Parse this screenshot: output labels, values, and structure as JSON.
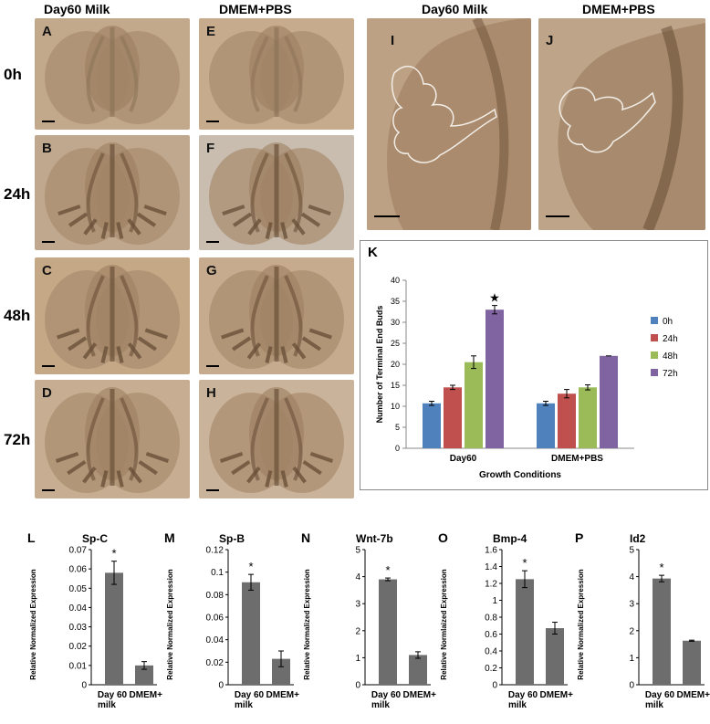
{
  "photo_panels": {
    "col_left_title": "Day60 Milk",
    "col_mid_title": "DMEM+PBS",
    "col_i_title": "Day60 Milk",
    "col_j_title": "DMEM+PBS",
    "rows": [
      "0h",
      "24h",
      "48h",
      "72h"
    ],
    "letters_left": [
      "A",
      "B",
      "C",
      "D"
    ],
    "letters_mid": [
      "E",
      "F",
      "G",
      "H"
    ],
    "letter_i": "I",
    "letter_j": "J"
  },
  "chart_data": [
    {
      "panel": "K",
      "type": "bar",
      "categories": [
        "Day60",
        "DMEM+PBS"
      ],
      "series": [
        {
          "name": "0h",
          "values": [
            10.7,
            10.7
          ],
          "errors": [
            0.5,
            0.5
          ],
          "color": "#4f81bd"
        },
        {
          "name": "24h",
          "values": [
            14.5,
            13.0
          ],
          "errors": [
            0.5,
            1.0
          ],
          "color": "#c0504d"
        },
        {
          "name": "48h",
          "values": [
            20.5,
            14.5
          ],
          "errors": [
            1.5,
            0.6
          ],
          "color": "#9bbb59"
        },
        {
          "name": "72h",
          "values": [
            33.0,
            22.0
          ],
          "errors": [
            1.0,
            0.0
          ],
          "color": "#8064a2"
        }
      ],
      "ylabel": "Number of Terminal End Buds",
      "xlabel": "Growth Conditions",
      "ylim": [
        0,
        40
      ],
      "yticks": [
        "0",
        "5",
        "10",
        "15",
        "20",
        "25",
        "30",
        "35",
        "40"
      ],
      "annotation": "★",
      "legend": "right"
    },
    {
      "panel": "L",
      "title": "Sp-C",
      "type": "bar",
      "categories": [
        "Day 60 milk",
        "DMEM+PBS"
      ],
      "values": [
        0.058,
        0.01
      ],
      "errors": [
        0.006,
        0.002
      ],
      "ylabel": "Relative Normalized Expression",
      "ylim": [
        0,
        0.07
      ],
      "yticks": [
        "0",
        "0.01",
        "0.02",
        "0.03",
        "0.04",
        "0.05",
        "0.06",
        "0.07"
      ],
      "star": "*"
    },
    {
      "panel": "M",
      "title": "Sp-B",
      "type": "bar",
      "categories": [
        "Day 60 milk",
        "DMEM+PBS"
      ],
      "values": [
        0.091,
        0.023
      ],
      "errors": [
        0.007,
        0.007
      ],
      "ylabel": "Relative Normalized Expression",
      "ylim": [
        0,
        0.12
      ],
      "yticks": [
        "0",
        "0.02",
        "0.04",
        "0.06",
        "0.08",
        "0.1",
        "0.12"
      ],
      "star": "*"
    },
    {
      "panel": "N",
      "title": "Wnt-7b",
      "type": "bar",
      "categories": [
        "Day 60 milk",
        "DMEM+PBS"
      ],
      "values": [
        3.9,
        1.1
      ],
      "errors": [
        0.05,
        0.12
      ],
      "ylabel": "Relative Normalized Expression",
      "ylim": [
        0,
        5
      ],
      "yticks": [
        "0",
        "1",
        "2",
        "3",
        "4",
        "5"
      ],
      "star": "*"
    },
    {
      "panel": "O",
      "title": "Bmp-4",
      "type": "bar",
      "categories": [
        "Day 60 milk",
        "DMEM+PBS"
      ],
      "values": [
        1.25,
        0.67
      ],
      "errors": [
        0.1,
        0.07
      ],
      "ylabel": "Relative Normlaized Expression",
      "ylim": [
        0,
        1.6
      ],
      "yticks": [
        "0",
        "0.2",
        "0.4",
        "0.6",
        "0.8",
        "1",
        "1.2",
        "1.4",
        "1.6"
      ],
      "star": "*"
    },
    {
      "panel": "P",
      "title": "Id2",
      "type": "bar",
      "categories": [
        "Day 60 milk",
        "DMEM+PBS"
      ],
      "values": [
        3.93,
        1.63
      ],
      "errors": [
        0.12,
        0.02
      ],
      "ylabel": "Relative Normalized Expression",
      "ylim": [
        0,
        5
      ],
      "yticks": [
        "0",
        "1",
        "2",
        "3",
        "4",
        "5"
      ],
      "star": "*"
    }
  ]
}
